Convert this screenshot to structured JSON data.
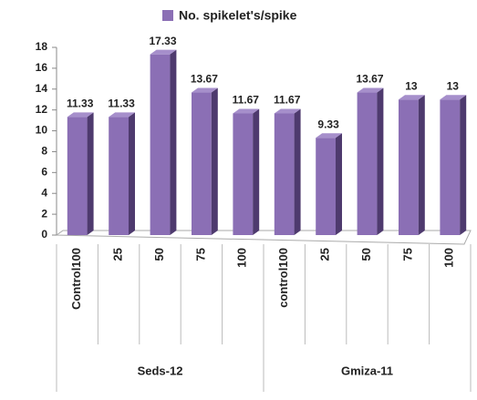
{
  "chart_data": {
    "type": "bar",
    "legend": "No. spikelet's/spike",
    "color": "#8b6fb5",
    "ylim": [
      0,
      18
    ],
    "yticks": [
      0,
      2,
      4,
      6,
      8,
      10,
      12,
      14,
      16,
      18
    ],
    "grid": false,
    "groups": [
      {
        "name": "Seds-12",
        "categories": [
          "Control100",
          "25",
          "50",
          "75",
          "100"
        ],
        "values": [
          11.33,
          11.33,
          17.33,
          13.67,
          11.67
        ]
      },
      {
        "name": "Gmiza-11",
        "categories": [
          "control100",
          "25",
          "50",
          "75",
          "100"
        ],
        "values": [
          11.67,
          9.33,
          13.67,
          13,
          13
        ]
      }
    ]
  }
}
